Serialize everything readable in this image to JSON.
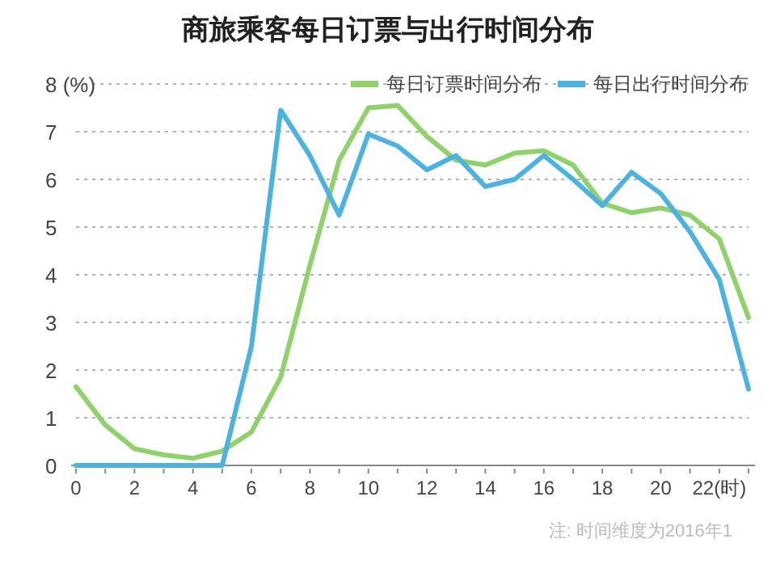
{
  "chart_data": {
    "type": "line",
    "title": "商旅乘客每日订票与出行时间分布",
    "x": [
      0,
      1,
      2,
      3,
      4,
      5,
      6,
      7,
      8,
      9,
      10,
      11,
      12,
      13,
      14,
      15,
      16,
      17,
      18,
      19,
      20,
      21,
      22,
      23
    ],
    "series": [
      {
        "name": "每日订票时间分布",
        "color": "#8fd16a",
        "values": [
          1.65,
          0.85,
          0.35,
          0.22,
          0.15,
          0.3,
          0.7,
          1.85,
          4.2,
          6.4,
          7.5,
          7.55,
          6.9,
          6.4,
          6.3,
          6.55,
          6.6,
          6.3,
          5.5,
          5.3,
          5.4,
          5.25,
          4.75,
          3.1
        ]
      },
      {
        "name": "每日出行时间分布",
        "color": "#4cb3e0",
        "values": [
          0,
          0,
          0,
          0,
          0,
          0,
          2.5,
          7.45,
          6.5,
          5.25,
          6.95,
          6.7,
          6.2,
          6.5,
          5.85,
          6.0,
          6.5,
          6.0,
          5.45,
          6.15,
          5.7,
          4.9,
          3.9,
          1.6
        ]
      }
    ],
    "xlim": [
      0,
      23
    ],
    "xticks": [
      0,
      {
        "value": 1,
        "label": null
      },
      2,
      {
        "value": 3,
        "label": null
      },
      4,
      {
        "value": 5,
        "label": null
      },
      6,
      {
        "value": 7,
        "label": null
      },
      8,
      {
        "value": 9,
        "label": null
      },
      10,
      {
        "value": 11,
        "label": null
      },
      12,
      {
        "value": 13,
        "label": null
      },
      14,
      {
        "value": 15,
        "label": null
      },
      16,
      {
        "value": 17,
        "label": null
      },
      18,
      {
        "value": 19,
        "label": null
      },
      20,
      {
        "value": 21,
        "label": null
      },
      {
        "value": 22,
        "label": "22(时)"
      },
      {
        "value": 23,
        "label": null
      }
    ],
    "ylim": [
      0,
      8
    ],
    "yticks": [
      0,
      1,
      2,
      3,
      4,
      5,
      6,
      7,
      {
        "value": 8,
        "label": "8 (%)"
      }
    ],
    "grid": "y",
    "legend": "top right",
    "marker": "none",
    "line_style": "solid",
    "annotations": [
      "注: 时间维度为2016年1"
    ]
  }
}
